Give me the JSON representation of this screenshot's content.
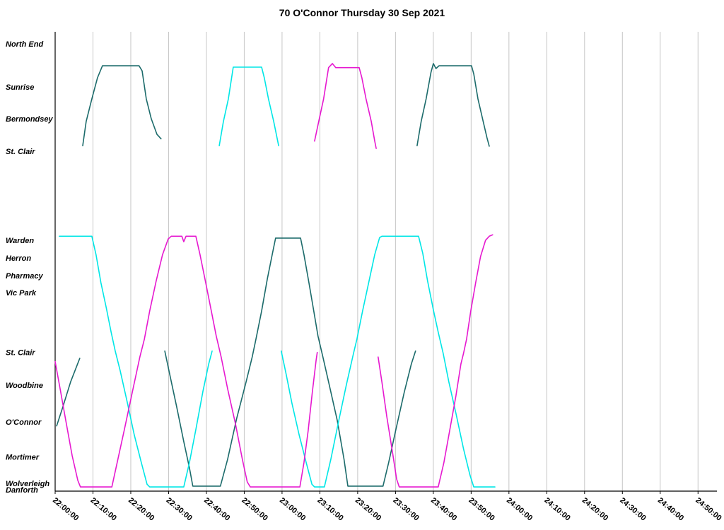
{
  "chart_data": {
    "type": "line",
    "subtype": "transit-stringline",
    "title": "70 O'Connor Thursday 30 Sep 2021",
    "x_axis": {
      "start_time": "22:00:00",
      "tick_interval_minutes": 10,
      "xlim_minutes": [
        0,
        175
      ],
      "tick_labels": [
        "22:00:00",
        "22:10:00",
        "22:20:00",
        "22:30:00",
        "22:40:00",
        "22:50:00",
        "23:00:00",
        "23:10:00",
        "23:20:00",
        "23:30:00",
        "23:40:00",
        "23:50:00",
        "24:00:00",
        "24:10:00",
        "24:20:00",
        "24:30:00",
        "24:40:00",
        "24:50:00"
      ]
    },
    "y_axis": {
      "unit": "route position (0 = Danforth, 100 = top of plot)",
      "stops": [
        {
          "label": "North End",
          "pos": 97.4
        },
        {
          "label": "Sunrise",
          "pos": 88.0
        },
        {
          "label": "Bermondsey",
          "pos": 81.1
        },
        {
          "label": "St. Clair",
          "pos": 74.0
        },
        {
          "label": "Warden",
          "pos": 54.6
        },
        {
          "label": "Herron",
          "pos": 50.8
        },
        {
          "label": "Pharmacy",
          "pos": 46.9
        },
        {
          "label": "Vic Park",
          "pos": 43.2
        },
        {
          "label": "St. Clair",
          "pos": 30.2
        },
        {
          "label": "Woodbine",
          "pos": 23.1
        },
        {
          "label": "O'Connor",
          "pos": 15.1
        },
        {
          "label": "Mortimer",
          "pos": 7.5
        },
        {
          "label": "Wolverleigh",
          "pos": 1.7
        },
        {
          "label": "Danforth",
          "pos": 0.3
        }
      ]
    },
    "grid": "vertical-only",
    "grid_color": "#c6c6c6",
    "axis_color": "#000000",
    "colors": {
      "teal": "#1c6b6b",
      "cyan": "#00e6e6",
      "magenta": "#e619d0"
    },
    "series": [
      {
        "name": "teal-1",
        "color": "teal",
        "points": [
          [
            0.4,
            14.2
          ],
          [
            1.9,
            18.0
          ],
          [
            4.1,
            23.8
          ],
          [
            6.5,
            28.9
          ]
        ]
      },
      {
        "name": "teal-2",
        "color": "teal",
        "points": [
          [
            7.3,
            75.2
          ],
          [
            8.2,
            80.5
          ],
          [
            9.7,
            85.4
          ],
          [
            11.2,
            90.0
          ],
          [
            12.5,
            92.6
          ],
          [
            22.2,
            92.6
          ],
          [
            23.0,
            91.5
          ],
          [
            24.1,
            85.4
          ],
          [
            25.4,
            81.1
          ],
          [
            26.9,
            77.7
          ],
          [
            28.0,
            76.7
          ]
        ]
      },
      {
        "name": "teal-3",
        "color": "teal",
        "points": [
          [
            29.0,
            30.5
          ],
          [
            30.3,
            25.4
          ],
          [
            32.1,
            18.5
          ],
          [
            34.0,
            10.8
          ],
          [
            35.5,
            5.1
          ],
          [
            36.4,
            1.1
          ],
          [
            43.7,
            1.1
          ],
          [
            45.6,
            6.9
          ],
          [
            48.0,
            15.8
          ],
          [
            50.5,
            23.8
          ],
          [
            52.1,
            29.2
          ],
          [
            53.1,
            33.1
          ],
          [
            54.6,
            39.2
          ],
          [
            56.1,
            46.2
          ],
          [
            57.4,
            51.5
          ],
          [
            58.3,
            55.1
          ],
          [
            64.9,
            55.1
          ],
          [
            65.8,
            51.5
          ],
          [
            67.1,
            45.4
          ],
          [
            68.4,
            39.2
          ],
          [
            69.5,
            33.8
          ],
          [
            70.8,
            29.2
          ],
          [
            72.3,
            23.8
          ],
          [
            74.6,
            15.4
          ],
          [
            76.4,
            6.9
          ],
          [
            77.4,
            1.1
          ],
          [
            86.7,
            1.1
          ],
          [
            88.2,
            6.2
          ],
          [
            90.1,
            13.4
          ],
          [
            92.3,
            21.5
          ],
          [
            94.2,
            27.7
          ],
          [
            95.3,
            30.5
          ]
        ]
      },
      {
        "name": "teal-4",
        "color": "teal",
        "points": [
          [
            95.7,
            75.2
          ],
          [
            96.8,
            80.5
          ],
          [
            98.1,
            85.4
          ],
          [
            99.4,
            91.2
          ],
          [
            100.0,
            93.1
          ],
          [
            100.7,
            92.0
          ],
          [
            101.5,
            92.6
          ],
          [
            110.1,
            92.6
          ],
          [
            110.7,
            90.8
          ],
          [
            111.8,
            85.4
          ],
          [
            113.1,
            80.8
          ],
          [
            114.2,
            76.9
          ],
          [
            114.8,
            75.1
          ]
        ]
      },
      {
        "name": "cyan-1",
        "color": "cyan",
        "points": [
          [
            1.1,
            55.5
          ],
          [
            9.7,
            55.5
          ],
          [
            10.8,
            51.5
          ],
          [
            12.1,
            45.4
          ],
          [
            13.5,
            40.0
          ],
          [
            14.8,
            34.6
          ],
          [
            15.9,
            30.5
          ],
          [
            17.2,
            26.2
          ],
          [
            19.1,
            19.2
          ],
          [
            20.9,
            12.3
          ],
          [
            22.8,
            6.2
          ],
          [
            24.3,
            1.5
          ],
          [
            25.0,
            0.9
          ],
          [
            34.0,
            0.9
          ],
          [
            35.5,
            6.2
          ],
          [
            37.2,
            13.4
          ],
          [
            39.1,
            21.8
          ],
          [
            40.6,
            27.7
          ],
          [
            41.5,
            30.5
          ]
        ]
      },
      {
        "name": "cyan-2",
        "color": "cyan",
        "points": [
          [
            43.4,
            75.2
          ],
          [
            44.5,
            80.5
          ],
          [
            45.8,
            85.4
          ],
          [
            47.1,
            92.3
          ],
          [
            54.6,
            92.3
          ],
          [
            55.3,
            90.0
          ],
          [
            56.4,
            85.4
          ],
          [
            57.8,
            80.5
          ],
          [
            59.1,
            75.2
          ]
        ]
      },
      {
        "name": "cyan-3",
        "color": "cyan",
        "points": [
          [
            59.8,
            30.5
          ],
          [
            61.1,
            25.4
          ],
          [
            62.6,
            19.2
          ],
          [
            64.5,
            12.3
          ],
          [
            66.4,
            6.2
          ],
          [
            67.9,
            1.5
          ],
          [
            68.6,
            0.9
          ],
          [
            71.2,
            0.9
          ],
          [
            72.9,
            6.9
          ],
          [
            74.8,
            14.6
          ],
          [
            77.0,
            23.1
          ],
          [
            78.9,
            30.0
          ],
          [
            79.8,
            33.1
          ],
          [
            81.3,
            39.2
          ],
          [
            83.0,
            45.7
          ],
          [
            84.5,
            51.5
          ],
          [
            85.8,
            55.2
          ],
          [
            86.4,
            55.5
          ],
          [
            96.1,
            55.5
          ],
          [
            97.2,
            51.8
          ],
          [
            98.5,
            45.7
          ],
          [
            100.0,
            39.5
          ],
          [
            101.3,
            34.6
          ],
          [
            102.6,
            30.0
          ],
          [
            104.1,
            23.8
          ],
          [
            106.0,
            16.9
          ],
          [
            108.0,
            9.2
          ],
          [
            109.7,
            3.5
          ],
          [
            110.7,
            0.9
          ],
          [
            116.3,
            0.9
          ]
        ]
      },
      {
        "name": "magenta-1",
        "color": "magenta",
        "points": [
          [
            0.0,
            28.2
          ],
          [
            1.3,
            22.3
          ],
          [
            2.8,
            15.4
          ],
          [
            4.5,
            7.7
          ],
          [
            6.0,
            2.3
          ],
          [
            6.7,
            0.9
          ],
          [
            15.0,
            0.9
          ],
          [
            16.4,
            6.2
          ],
          [
            18.3,
            13.4
          ],
          [
            20.6,
            22.3
          ],
          [
            22.4,
            29.2
          ],
          [
            23.6,
            33.1
          ],
          [
            25.0,
            39.2
          ],
          [
            26.7,
            45.7
          ],
          [
            28.4,
            51.5
          ],
          [
            29.9,
            54.9
          ],
          [
            30.7,
            55.5
          ],
          [
            33.5,
            55.5
          ],
          [
            34.0,
            54.3
          ],
          [
            34.6,
            55.5
          ],
          [
            37.2,
            55.5
          ],
          [
            38.3,
            51.5
          ],
          [
            39.8,
            45.4
          ],
          [
            41.3,
            39.2
          ],
          [
            42.6,
            33.8
          ],
          [
            43.9,
            29.2
          ],
          [
            45.6,
            22.3
          ],
          [
            47.7,
            14.6
          ],
          [
            49.5,
            6.9
          ],
          [
            50.8,
            2.0
          ],
          [
            51.6,
            0.9
          ],
          [
            64.7,
            0.9
          ],
          [
            65.8,
            6.2
          ],
          [
            66.9,
            13.1
          ],
          [
            68.0,
            21.5
          ],
          [
            69.0,
            28.5
          ],
          [
            69.3,
            30.2
          ]
        ]
      },
      {
        "name": "magenta-2",
        "color": "magenta",
        "points": [
          [
            68.6,
            76.2
          ],
          [
            69.7,
            80.5
          ],
          [
            71.0,
            85.4
          ],
          [
            72.3,
            92.2
          ],
          [
            73.3,
            93.1
          ],
          [
            74.2,
            92.2
          ],
          [
            80.4,
            92.2
          ],
          [
            81.1,
            90.0
          ],
          [
            82.2,
            85.4
          ],
          [
            83.6,
            80.5
          ],
          [
            84.5,
            76.2
          ],
          [
            84.9,
            74.6
          ]
        ]
      },
      {
        "name": "magenta-3",
        "color": "magenta",
        "points": [
          [
            85.4,
            29.2
          ],
          [
            86.4,
            23.8
          ],
          [
            87.7,
            16.2
          ],
          [
            89.2,
            8.5
          ],
          [
            90.3,
            2.6
          ],
          [
            91.0,
            0.9
          ],
          [
            101.3,
            0.9
          ],
          [
            102.8,
            6.2
          ],
          [
            104.3,
            13.1
          ],
          [
            106.0,
            20.8
          ],
          [
            107.3,
            27.7
          ],
          [
            108.0,
            30.0
          ],
          [
            108.8,
            33.1
          ],
          [
            109.9,
            39.2
          ],
          [
            111.2,
            45.4
          ],
          [
            112.5,
            51.1
          ],
          [
            113.8,
            54.6
          ],
          [
            114.8,
            55.5
          ],
          [
            115.7,
            55.8
          ]
        ]
      }
    ]
  }
}
